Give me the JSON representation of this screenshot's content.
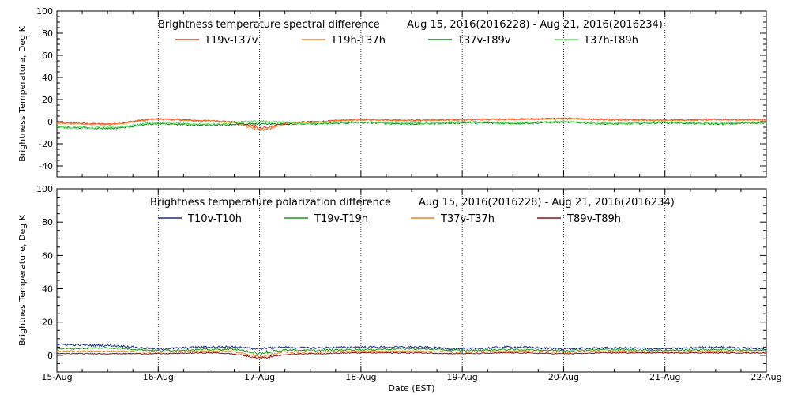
{
  "chart_data": [
    {
      "type": "line",
      "title": "Brightness temperature spectral difference",
      "date_range": "Aug 15, 2016(2016228) - Aug 21, 2016(2016234)",
      "ylabel": "Brightness Temperature, Deg K",
      "xlabel": "",
      "ylim": [
        -50,
        100
      ],
      "yticks": [
        -40,
        -20,
        0,
        20,
        40,
        60,
        80,
        100
      ],
      "xlim": [
        "2016-08-15",
        "2016-08-22"
      ],
      "grid": "vertical dotted lines at each day",
      "legend_position": "top",
      "series": [
        {
          "name": "T19v-T37v",
          "color": "#e8321e",
          "base": 1.5,
          "amp": 1.8,
          "noise": 0.6,
          "dip17": -4,
          "anchors": [
            [
              0,
              -1
            ],
            [
              0.5,
              -2
            ],
            [
              1,
              2.5
            ],
            [
              1.5,
              1
            ],
            [
              1.9,
              -1
            ],
            [
              2.1,
              -2
            ],
            [
              2.5,
              0
            ],
            [
              3,
              2
            ],
            [
              3.5,
              1.5
            ],
            [
              4,
              2
            ],
            [
              4.5,
              2.5
            ],
            [
              5,
              3
            ],
            [
              5.5,
              2
            ],
            [
              6,
              1.5
            ],
            [
              6.5,
              2
            ],
            [
              7,
              2
            ]
          ]
        },
        {
          "name": "T19h-T37h",
          "color": "#f08020",
          "base": 1,
          "amp": 1.8,
          "noise": 0.6,
          "dip17": -5,
          "anchors": [
            [
              0,
              -1.5
            ],
            [
              0.5,
              -2.5
            ],
            [
              1,
              2
            ],
            [
              1.5,
              0.5
            ],
            [
              1.9,
              -1.5
            ],
            [
              2.1,
              -3
            ],
            [
              2.5,
              -0.5
            ],
            [
              3,
              1.5
            ],
            [
              3.5,
              1
            ],
            [
              4,
              1.5
            ],
            [
              4.5,
              2
            ],
            [
              5,
              2.5
            ],
            [
              5.5,
              1.5
            ],
            [
              6,
              1
            ],
            [
              6.5,
              1.5
            ],
            [
              7,
              1.5
            ]
          ]
        },
        {
          "name": "T37v-T89v",
          "color": "#0a7a1a",
          "base": -2,
          "amp": 1.5,
          "noise": 0.8,
          "dip17": 0,
          "anchors": [
            [
              0,
              -5
            ],
            [
              0.5,
              -6
            ],
            [
              1,
              -2
            ],
            [
              1.5,
              -3
            ],
            [
              2,
              -2
            ],
            [
              2.5,
              -2
            ],
            [
              3,
              -1
            ],
            [
              3.5,
              -2
            ],
            [
              4,
              -1
            ],
            [
              4.5,
              -1.5
            ],
            [
              5,
              -0.5
            ],
            [
              5.5,
              -2
            ],
            [
              6,
              -1
            ],
            [
              6.5,
              -2
            ],
            [
              7,
              -1
            ]
          ]
        },
        {
          "name": "T37h-T89h",
          "color": "#55e055",
          "base": -1.5,
          "amp": 1.5,
          "noise": 1.1,
          "dip17": 0,
          "anchors": [
            [
              0,
              -5
            ],
            [
              0.5,
              -5.5
            ],
            [
              1,
              -1.5
            ],
            [
              1.5,
              -2.5
            ],
            [
              2,
              0
            ],
            [
              2.5,
              -1.5
            ],
            [
              3,
              -0.5
            ],
            [
              3.5,
              -1.5
            ],
            [
              4,
              -0.5
            ],
            [
              4.5,
              -1
            ],
            [
              5,
              0
            ],
            [
              5.5,
              -1.5
            ],
            [
              6,
              -0.5
            ],
            [
              6.5,
              -1.5
            ],
            [
              7,
              -0.5
            ]
          ]
        }
      ]
    },
    {
      "type": "line",
      "title": "Brightness temperature polarization difference",
      "date_range": "Aug 15, 2016(2016228) - Aug 21, 2016(2016234)",
      "ylabel": "Brightnes Temperature, Deg K",
      "xlabel": "Date (EST)",
      "ylim": [
        -10,
        100
      ],
      "yticks": [
        0,
        20,
        40,
        60,
        80,
        100
      ],
      "xticks": [
        "15-Aug",
        "16-Aug",
        "17-Aug",
        "18-Aug",
        "19-Aug",
        "20-Aug",
        "21-Aug",
        "22-Aug"
      ],
      "xlim": [
        "2016-08-15",
        "2016-08-22"
      ],
      "grid": "vertical dotted lines at each day",
      "legend_position": "top",
      "series": [
        {
          "name": "T10v-T10h",
          "color": "#1a2a90",
          "base": 5,
          "amp": 1.0,
          "noise": 0.6,
          "dip17": -1.5,
          "anchors": [
            [
              0,
              6.5
            ],
            [
              0.5,
              6
            ],
            [
              1,
              4
            ],
            [
              1.5,
              5
            ],
            [
              2,
              5.5
            ],
            [
              2.5,
              4.5
            ],
            [
              3,
              5
            ],
            [
              3.5,
              5
            ],
            [
              4,
              4
            ],
            [
              4.5,
              5
            ],
            [
              5,
              4
            ],
            [
              5.5,
              4.5
            ],
            [
              6,
              4
            ],
            [
              6.5,
              5
            ],
            [
              7,
              4
            ]
          ]
        },
        {
          "name": "T19v-T19h",
          "color": "#1a9a1a",
          "base": 3.5,
          "amp": 0.8,
          "noise": 0.5,
          "dip17": -3,
          "anchors": [
            [
              0,
              4
            ],
            [
              0.5,
              4.5
            ],
            [
              1,
              3
            ],
            [
              1.5,
              3.5
            ],
            [
              2,
              4
            ],
            [
              2.5,
              3
            ],
            [
              3,
              3.5
            ],
            [
              3.5,
              4
            ],
            [
              4,
              3
            ],
            [
              4.5,
              3.5
            ],
            [
              5,
              3
            ],
            [
              5.5,
              3.5
            ],
            [
              6,
              3
            ],
            [
              6.5,
              3.5
            ],
            [
              7,
              3
            ]
          ]
        },
        {
          "name": "T37v-T37h",
          "color": "#f08020",
          "base": 2.5,
          "amp": 0.6,
          "noise": 0.4,
          "dip17": -2.5,
          "anchors": [
            [
              0,
              2.5
            ],
            [
              0.5,
              2.5
            ],
            [
              1,
              2
            ],
            [
              1.5,
              2.5
            ],
            [
              2,
              2
            ],
            [
              2.5,
              2
            ],
            [
              3,
              2.5
            ],
            [
              3.5,
              2.5
            ],
            [
              4,
              2
            ],
            [
              4.5,
              2.5
            ],
            [
              5,
              2
            ],
            [
              5.5,
              2.5
            ],
            [
              6,
              2
            ],
            [
              6.5,
              2.5
            ],
            [
              7,
              2
            ]
          ]
        },
        {
          "name": "T89v-T89h",
          "color": "#8a1010",
          "base": 1,
          "amp": 0.5,
          "noise": 0.3,
          "dip17": -1.5,
          "anchors": [
            [
              0,
              1
            ],
            [
              0.5,
              1
            ],
            [
              1,
              1
            ],
            [
              1.5,
              1.5
            ],
            [
              2,
              0
            ],
            [
              2.5,
              1
            ],
            [
              3,
              1.5
            ],
            [
              3.5,
              1.5
            ],
            [
              4,
              1
            ],
            [
              4.5,
              1.5
            ],
            [
              5,
              1
            ],
            [
              5.5,
              1.5
            ],
            [
              6,
              1.5
            ],
            [
              6.5,
              1.5
            ],
            [
              7,
              1.5
            ]
          ]
        }
      ]
    }
  ]
}
